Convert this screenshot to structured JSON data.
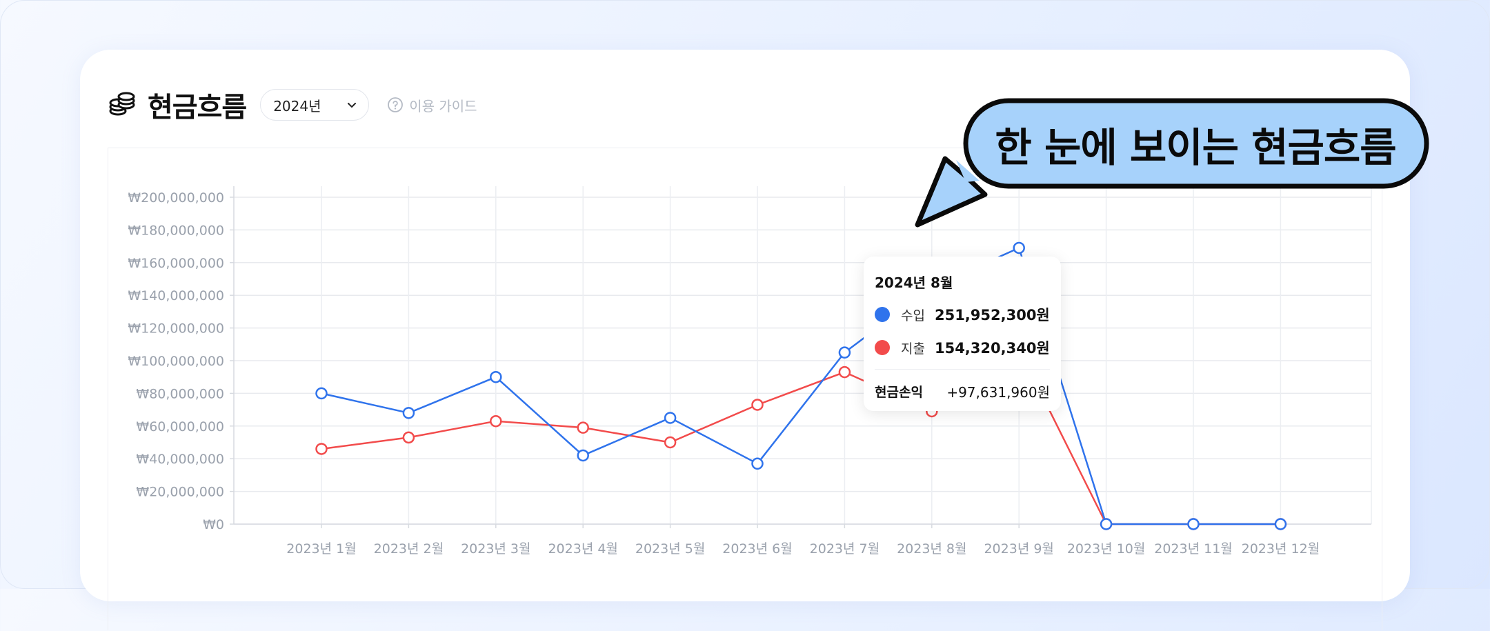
{
  "header": {
    "title": "현금흐름",
    "year_select": "2024년",
    "guide_label": "이용 가이드"
  },
  "tooltip": {
    "title": "2024년 8월",
    "income_label": "수입",
    "income_value": "251,952,300원",
    "expense_label": "지출",
    "expense_value": "154,320,340원",
    "net_label": "현금손익",
    "net_value": "+97,631,960원"
  },
  "callout": {
    "text": "한 눈에 보이는 현금흐름"
  },
  "colors": {
    "income": "#2f73ec",
    "expense": "#f24b4b",
    "callout_fill": "#a7d2fb",
    "callout_border": "#0a0a0a"
  },
  "chart_data": {
    "type": "line",
    "categories": [
      "2023년 1월",
      "2023년 2월",
      "2023년 3월",
      "2023년 4월",
      "2023년 5월",
      "2023년 6월",
      "2023년 7월",
      "2023년 8월",
      "2023년 9월",
      "2023년 10월",
      "2023년 11월",
      "2023년 12월"
    ],
    "y_ticks": [
      "₩0",
      "₩20,000,000",
      "₩40,000,000",
      "₩60,000,000",
      "₩80,000,000",
      "₩100,000,000",
      "₩120,000,000",
      "₩140,000,000",
      "₩160,000,000",
      "₩180,000,000",
      "₩200,000,000"
    ],
    "ylim": [
      0,
      200000000
    ],
    "grid": true,
    "series": [
      {
        "name": "수입",
        "color_key": "income",
        "values": [
          80000000,
          68000000,
          90000000,
          42000000,
          65000000,
          37000000,
          105000000,
          145000000,
          169000000,
          0,
          0,
          0
        ]
      },
      {
        "name": "지출",
        "color_key": "expense",
        "values": [
          46000000,
          53000000,
          63000000,
          59000000,
          50000000,
          73000000,
          93000000,
          69000000,
          107000000,
          0,
          0,
          0
        ]
      }
    ]
  }
}
